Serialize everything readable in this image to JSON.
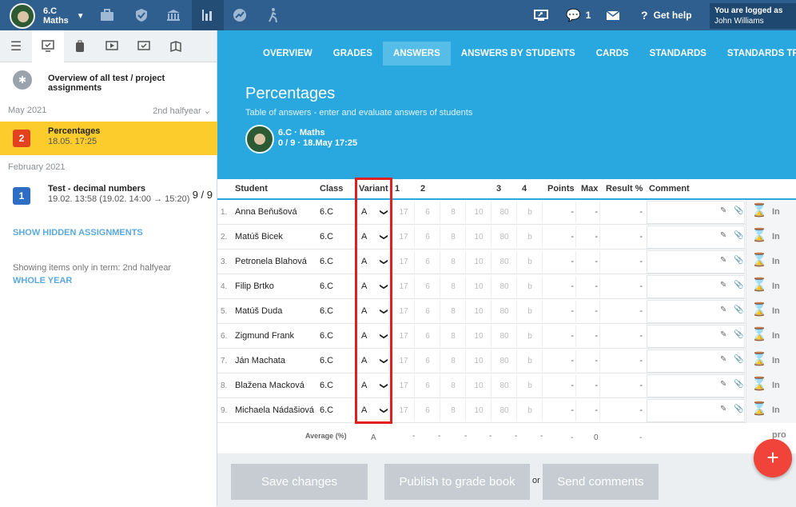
{
  "topbar": {
    "class_name": "6.C",
    "subject": "Maths",
    "notifications_count": "1",
    "help_label": "Get help",
    "logged_label": "You are logged as",
    "user_name": "John Williams"
  },
  "sidebar": {
    "overview_label": "Overview of all test / project assignments",
    "sections": [
      {
        "label": "May 2021",
        "term": "2nd halfyear"
      },
      {
        "label": "February 2021"
      }
    ],
    "items": [
      {
        "badge": "2",
        "badge_color": "#e3421f",
        "title": "Percentages",
        "subtitle": "18.05. 17:25",
        "count": ""
      },
      {
        "badge": "1",
        "badge_color": "#2e6dc4",
        "title": "Test - decimal numbers",
        "subtitle": "19.02. 13:58 (19.02. 14:00 → 15:20)",
        "count": "9 / 9"
      }
    ],
    "show_hidden": "SHOW HIDDEN ASSIGNMENTS",
    "term_note": "Showing items only in term: 2nd halfyear",
    "whole_year": "WHOLE YEAR"
  },
  "main": {
    "tabs": [
      "OVERVIEW",
      "GRADES",
      "ANSWERS",
      "ANSWERS BY STUDENTS",
      "CARDS",
      "STANDARDS",
      "STANDARDS TREE"
    ],
    "active_tab": "ANSWERS",
    "title": "Percentages",
    "subtitle": "Table of answers - enter and evaluate answers of students",
    "class_label": "6.C · Maths",
    "meta": "0 / 9 · 18.May 17:25"
  },
  "table": {
    "headers": {
      "student": "Student",
      "class": "Class",
      "variant": "Variant",
      "q1": "1",
      "q2": "2",
      "q3": "3",
      "q4": "4",
      "points": "Points",
      "max": "Max",
      "result": "Result %",
      "comment": "Comment"
    },
    "answer_placeholders": [
      "17",
      "6",
      "8",
      "10",
      "80",
      "b"
    ],
    "status_label": "In pro",
    "rows": [
      {
        "num": "1.",
        "name": "Anna Beňušová",
        "class": "6.C",
        "variant": "A",
        "points": "-",
        "max": "-",
        "result": "-"
      },
      {
        "num": "2.",
        "name": "Matúš Bicek",
        "class": "6.C",
        "variant": "A",
        "points": "-",
        "max": "-",
        "result": "-"
      },
      {
        "num": "3.",
        "name": "Petronela Blahová",
        "class": "6.C",
        "variant": "A",
        "points": "-",
        "max": "-",
        "result": "-"
      },
      {
        "num": "4.",
        "name": "Filip Brtko",
        "class": "6.C",
        "variant": "A",
        "points": "-",
        "max": "-",
        "result": "-"
      },
      {
        "num": "5.",
        "name": "Matúš Duda",
        "class": "6.C",
        "variant": "A",
        "points": "-",
        "max": "-",
        "result": "-"
      },
      {
        "num": "6.",
        "name": "Zigmund Frank",
        "class": "6.C",
        "variant": "A",
        "points": "-",
        "max": "-",
        "result": "-"
      },
      {
        "num": "7.",
        "name": "Ján Machata",
        "class": "6.C",
        "variant": "A",
        "points": "-",
        "max": "-",
        "result": "-"
      },
      {
        "num": "8.",
        "name": "Blažena Macková",
        "class": "6.C",
        "variant": "A",
        "points": "-",
        "max": "-",
        "result": "-"
      },
      {
        "num": "9.",
        "name": "Michaela Nádašiová",
        "class": "6.C",
        "variant": "A",
        "points": "-",
        "max": "-",
        "result": "-"
      }
    ],
    "average": {
      "label": "Average (%)",
      "variant": "A",
      "dash": "-",
      "max": "0"
    }
  },
  "footer": {
    "save": "Save changes",
    "publish": "Publish to grade book",
    "or": "or",
    "send": "Send comments"
  },
  "fab_label": "+"
}
